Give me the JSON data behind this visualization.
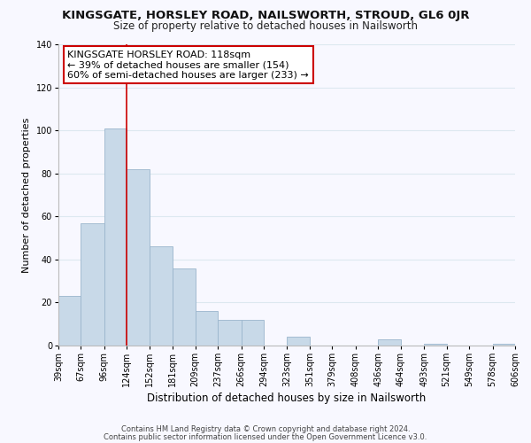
{
  "title": "KINGSGATE, HORSLEY ROAD, NAILSWORTH, STROUD, GL6 0JR",
  "subtitle": "Size of property relative to detached houses in Nailsworth",
  "xlabel": "Distribution of detached houses by size in Nailsworth",
  "ylabel": "Number of detached properties",
  "bar_edges": [
    39,
    67,
    96,
    124,
    152,
    181,
    209,
    237,
    266,
    294,
    323,
    351,
    379,
    408,
    436,
    464,
    493,
    521,
    549,
    578,
    606
  ],
  "bar_heights": [
    23,
    57,
    101,
    82,
    46,
    36,
    16,
    12,
    12,
    0,
    4,
    0,
    0,
    0,
    3,
    0,
    1,
    0,
    0,
    1
  ],
  "bar_color": "#c8d9e8",
  "bar_edgecolor": "#9ab5cc",
  "vline_x": 124,
  "vline_color": "#cc0000",
  "ylim": [
    0,
    140
  ],
  "yticks": [
    0,
    20,
    40,
    60,
    80,
    100,
    120,
    140
  ],
  "annotation_title": "KINGSGATE HORSLEY ROAD: 118sqm",
  "annotation_line1": "← 39% of detached houses are smaller (154)",
  "annotation_line2": "60% of semi-detached houses are larger (233) →",
  "footer_line1": "Contains HM Land Registry data © Crown copyright and database right 2024.",
  "footer_line2": "Contains public sector information licensed under the Open Government Licence v3.0.",
  "title_fontsize": 9.5,
  "subtitle_fontsize": 8.5,
  "xlabel_fontsize": 8.5,
  "ylabel_fontsize": 8,
  "tick_fontsize": 7,
  "annotation_fontsize": 8,
  "footer_fontsize": 6,
  "background_color": "#f8f8ff",
  "grid_color": "#dde8f0"
}
